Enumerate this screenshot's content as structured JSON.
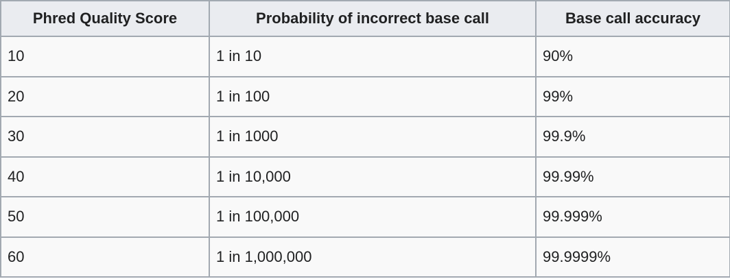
{
  "table": {
    "headers": [
      "Phred Quality Score",
      "Probability of incorrect base call",
      "Base call accuracy"
    ],
    "rows": [
      [
        "10",
        "1 in 10",
        "90%"
      ],
      [
        "20",
        "1 in 100",
        "99%"
      ],
      [
        "30",
        "1 in 1000",
        "99.9%"
      ],
      [
        "40",
        "1 in 10,000",
        "99.99%"
      ],
      [
        "50",
        "1 in 100,000",
        "99.999%"
      ],
      [
        "60",
        "1 in 1,000,000",
        "99.9999%"
      ]
    ]
  },
  "colors": {
    "header_background": "#eaecf0",
    "cell_background": "#f9f9f9",
    "border": "#a2a9b1",
    "text": "#202122"
  }
}
